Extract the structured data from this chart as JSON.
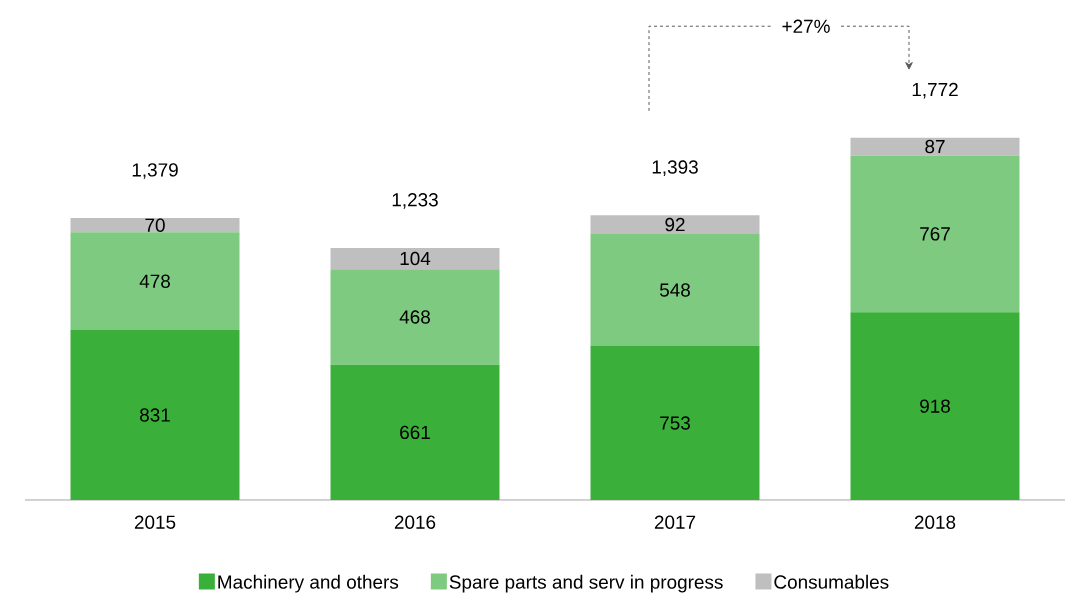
{
  "chart_data": {
    "type": "bar",
    "stacked": true,
    "data_labels": true,
    "legend": "bottom",
    "categories": [
      "2015",
      "2016",
      "2017",
      "2018"
    ],
    "series": [
      {
        "name": "Machinery and others",
        "color": "#3aaf3a",
        "values": [
          831,
          661,
          753,
          918
        ]
      },
      {
        "name": "Spare parts and serv in progress",
        "color": "#7eca80",
        "values": [
          478,
          468,
          548,
          767
        ]
      },
      {
        "name": "Consumables",
        "color": "#bfbfbf",
        "values": [
          70,
          104,
          92,
          87
        ]
      }
    ],
    "totals": [
      "1,379",
      "1,233",
      "1,393",
      "1,772"
    ],
    "annotations": [
      "+27%"
    ]
  }
}
